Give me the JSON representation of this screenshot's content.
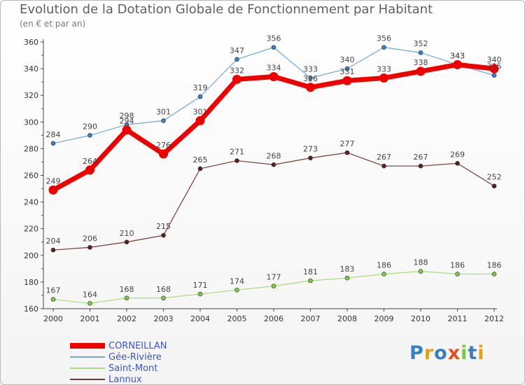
{
  "chart_data": {
    "type": "line",
    "title": "Evolution de la Dotation Globale de Fonctionnement par Habitant",
    "subtitle": "(en € et par an)",
    "xlabel": "",
    "ylabel": "",
    "categories": [
      "2000",
      "2001",
      "2002",
      "2003",
      "2004",
      "2005",
      "2006",
      "2007",
      "2008",
      "2009",
      "2010",
      "2011",
      "2012"
    ],
    "ylim": [
      160,
      360
    ],
    "yticks": [
      160,
      180,
      200,
      220,
      240,
      260,
      280,
      300,
      320,
      340,
      360
    ],
    "grid": false,
    "legend_position": "bottom-left",
    "series": [
      {
        "name": "Gée-Rivière",
        "color": "#6fa9d8",
        "marker": "#3a7fc0",
        "width": 1.2,
        "values": [
          284,
          290,
          298,
          301,
          319,
          347,
          356,
          333,
          340,
          356,
          352,
          343,
          335
        ]
      },
      {
        "name": "Saint-Mont",
        "color": "#a8dc7c",
        "marker": "#7ac943",
        "width": 1.2,
        "values": [
          167,
          164,
          168,
          168,
          171,
          174,
          177,
          181,
          183,
          186,
          188,
          186,
          186
        ]
      },
      {
        "name": "Lannux",
        "color": "#7a3838",
        "marker": "#5c1f1f",
        "width": 1.2,
        "values": [
          204,
          206,
          210,
          215,
          265,
          271,
          268,
          273,
          277,
          267,
          267,
          269,
          252
        ]
      },
      {
        "name": "CORNEILLAN",
        "color": "#ee0000",
        "marker": "#ee0000",
        "width": 7,
        "values": [
          249,
          264,
          294,
          276,
          301,
          332,
          334,
          326,
          331,
          333,
          338,
          343,
          340
        ]
      }
    ],
    "legend_order": [
      "CORNEILLAN",
      "Gée-Rivière",
      "Saint-Mont",
      "Lannux"
    ]
  },
  "logo": {
    "text": "Proxiti"
  }
}
